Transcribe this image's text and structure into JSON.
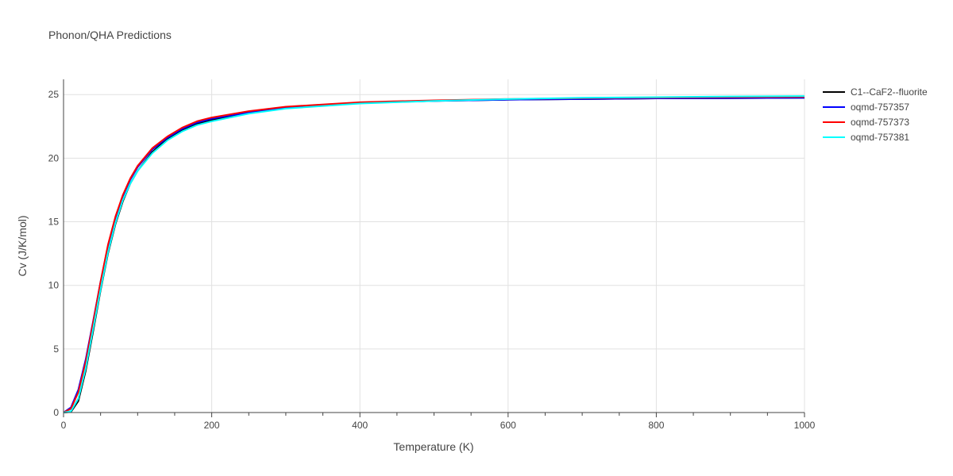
{
  "chart_data": {
    "type": "line",
    "title": "Phonon/QHA Predictions",
    "xlabel": "Temperature (K)",
    "ylabel": "Cv (J/K/mol)",
    "xlim": [
      0,
      1000
    ],
    "ylim": [
      0,
      26.2
    ],
    "x_ticks": [
      0,
      200,
      400,
      600,
      800,
      1000
    ],
    "y_ticks": [
      0,
      5,
      10,
      15,
      20,
      25
    ],
    "grid": true,
    "legend_position": "top-right",
    "series": [
      {
        "name": "C1--CaF2--fluorite",
        "color": "#000000",
        "x": [
          0,
          10,
          20,
          30,
          40,
          50,
          60,
          70,
          80,
          90,
          100,
          120,
          140,
          160,
          180,
          200,
          250,
          300,
          400,
          500,
          600,
          700,
          800,
          900,
          1000
        ],
        "y": [
          0,
          0.05,
          0.9,
          3.3,
          6.4,
          9.6,
          12.5,
          14.8,
          16.6,
          18.0,
          19.0,
          20.5,
          21.5,
          22.2,
          22.7,
          23.0,
          23.6,
          24.0,
          24.35,
          24.5,
          24.6,
          24.65,
          24.7,
          24.72,
          24.75
        ]
      },
      {
        "name": "oqmd-757357",
        "color": "#0000ff",
        "x": [
          0,
          10,
          20,
          30,
          40,
          50,
          60,
          70,
          80,
          90,
          100,
          120,
          140,
          160,
          180,
          200,
          250,
          300,
          400,
          500,
          600,
          700,
          800,
          900,
          1000
        ],
        "y": [
          0,
          0.4,
          1.8,
          4.2,
          7.2,
          10.3,
          13.1,
          15.3,
          17.0,
          18.3,
          19.3,
          20.7,
          21.6,
          22.3,
          22.8,
          23.1,
          23.6,
          24.0,
          24.35,
          24.5,
          24.6,
          24.65,
          24.7,
          24.72,
          24.75
        ]
      },
      {
        "name": "oqmd-757373",
        "color": "#ff0000",
        "x": [
          0,
          10,
          20,
          30,
          40,
          50,
          60,
          70,
          80,
          90,
          100,
          120,
          140,
          160,
          180,
          200,
          250,
          300,
          400,
          500,
          600,
          700,
          800,
          900,
          1000
        ],
        "y": [
          0,
          0.3,
          1.6,
          4.0,
          7.1,
          10.3,
          13.2,
          15.4,
          17.1,
          18.4,
          19.4,
          20.8,
          21.7,
          22.4,
          22.9,
          23.2,
          23.7,
          24.05,
          24.4,
          24.55,
          24.65,
          24.72,
          24.76,
          24.8,
          24.82
        ]
      },
      {
        "name": "oqmd-757381",
        "color": "#00ffff",
        "x": [
          0,
          10,
          20,
          30,
          40,
          50,
          60,
          70,
          80,
          90,
          100,
          120,
          140,
          160,
          180,
          200,
          250,
          300,
          400,
          500,
          600,
          700,
          800,
          900,
          1000
        ],
        "y": [
          0,
          0.1,
          1.1,
          3.5,
          6.6,
          9.7,
          12.6,
          14.9,
          16.7,
          18.0,
          19.0,
          20.4,
          21.4,
          22.1,
          22.6,
          22.9,
          23.5,
          23.9,
          24.3,
          24.5,
          24.65,
          24.75,
          24.8,
          24.85,
          24.88
        ]
      }
    ]
  }
}
